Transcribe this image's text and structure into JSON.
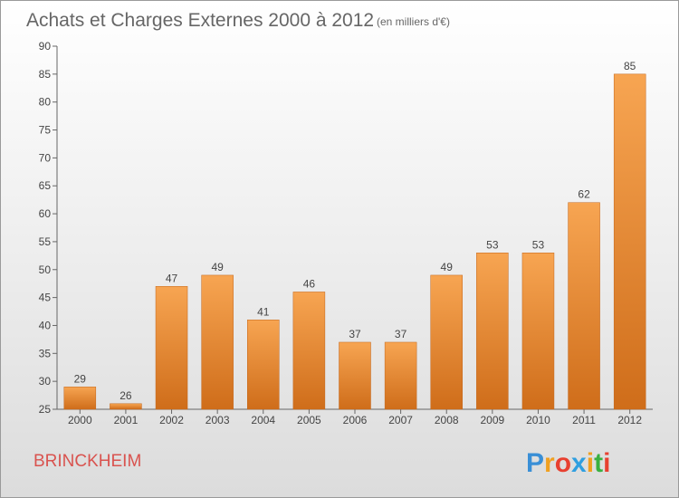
{
  "chart_data": {
    "type": "bar",
    "title": "Achats et Charges Externes 2000 à 2012",
    "subtitle": "(en milliers d'€)",
    "categories": [
      "2000",
      "2001",
      "2002",
      "2003",
      "2004",
      "2005",
      "2006",
      "2007",
      "2008",
      "2009",
      "2010",
      "2011",
      "2012"
    ],
    "values": [
      29,
      26,
      47,
      49,
      41,
      46,
      37,
      37,
      49,
      53,
      53,
      62,
      85
    ],
    "ylim": [
      25,
      90
    ],
    "yticks": [
      25,
      30,
      35,
      40,
      45,
      50,
      55,
      60,
      65,
      70,
      75,
      80,
      85,
      90
    ],
    "grid": false,
    "bar_color": "#f29a42"
  },
  "footer": {
    "commune": "BRINCKHEIM",
    "brand_letters": [
      {
        "ch": "P",
        "color": "#3a8fd6"
      },
      {
        "ch": "r",
        "color": "#f0a020"
      },
      {
        "ch": "o",
        "color": "#e84030"
      },
      {
        "ch": "x",
        "color": "#2f9fe0"
      },
      {
        "ch": "i",
        "color": "#f0a020"
      },
      {
        "ch": "t",
        "color": "#3ab040"
      },
      {
        "ch": "i",
        "color": "#e84030"
      }
    ]
  }
}
